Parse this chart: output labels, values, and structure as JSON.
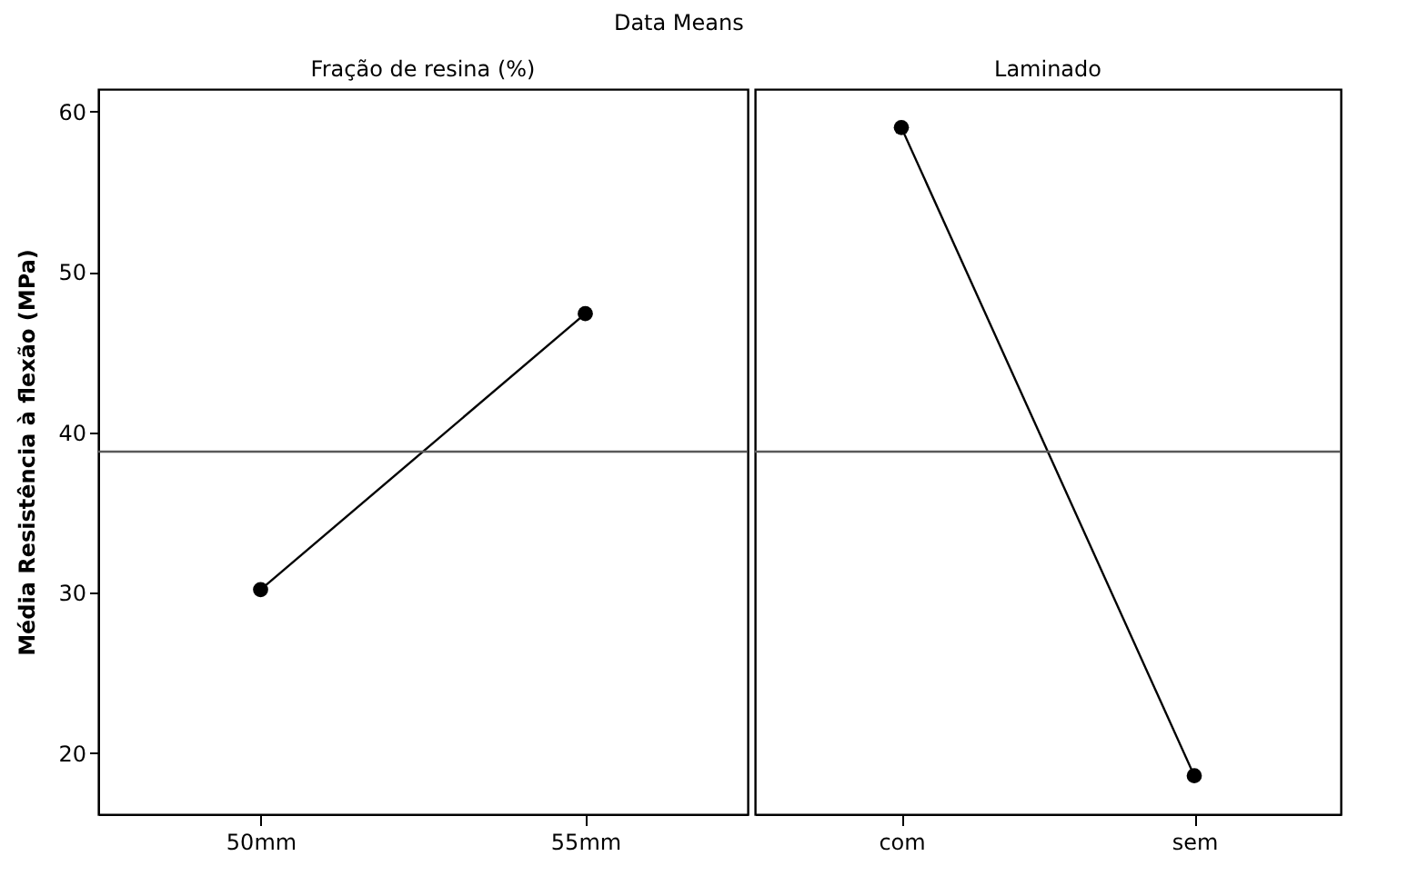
{
  "chart_data": [
    {
      "type": "line",
      "title": "Fração de resina (%)",
      "annotations": [
        "Data Means"
      ],
      "ylabel": "Média Resistência à flexão (MPa)",
      "categories": [
        "50mm",
        "55mm"
      ],
      "series": [
        {
          "color": "#000000",
          "values": [
            30.2,
            47.4
          ]
        }
      ],
      "ylim": [
        16.2,
        61.4
      ],
      "yticks": [
        20,
        30,
        40,
        50,
        60
      ],
      "marker": "circle",
      "grid": false,
      "legend": false,
      "ref_lines": [
        {
          "axis": "y",
          "value": 38.8,
          "color": "#595959"
        }
      ]
    },
    {
      "type": "line",
      "title": "Laminado",
      "categories": [
        "com",
        "sem"
      ],
      "series": [
        {
          "color": "#000000",
          "values": [
            59.0,
            18.6
          ]
        }
      ],
      "ylim": [
        16.2,
        61.4
      ],
      "yticks": [
        20,
        30,
        40,
        50,
        60
      ],
      "tick_labels": "x",
      "marker": "circle",
      "grid": false,
      "legend": false,
      "ref_lines": [
        {
          "axis": "y",
          "value": 38.8,
          "color": "#595959"
        }
      ]
    }
  ]
}
